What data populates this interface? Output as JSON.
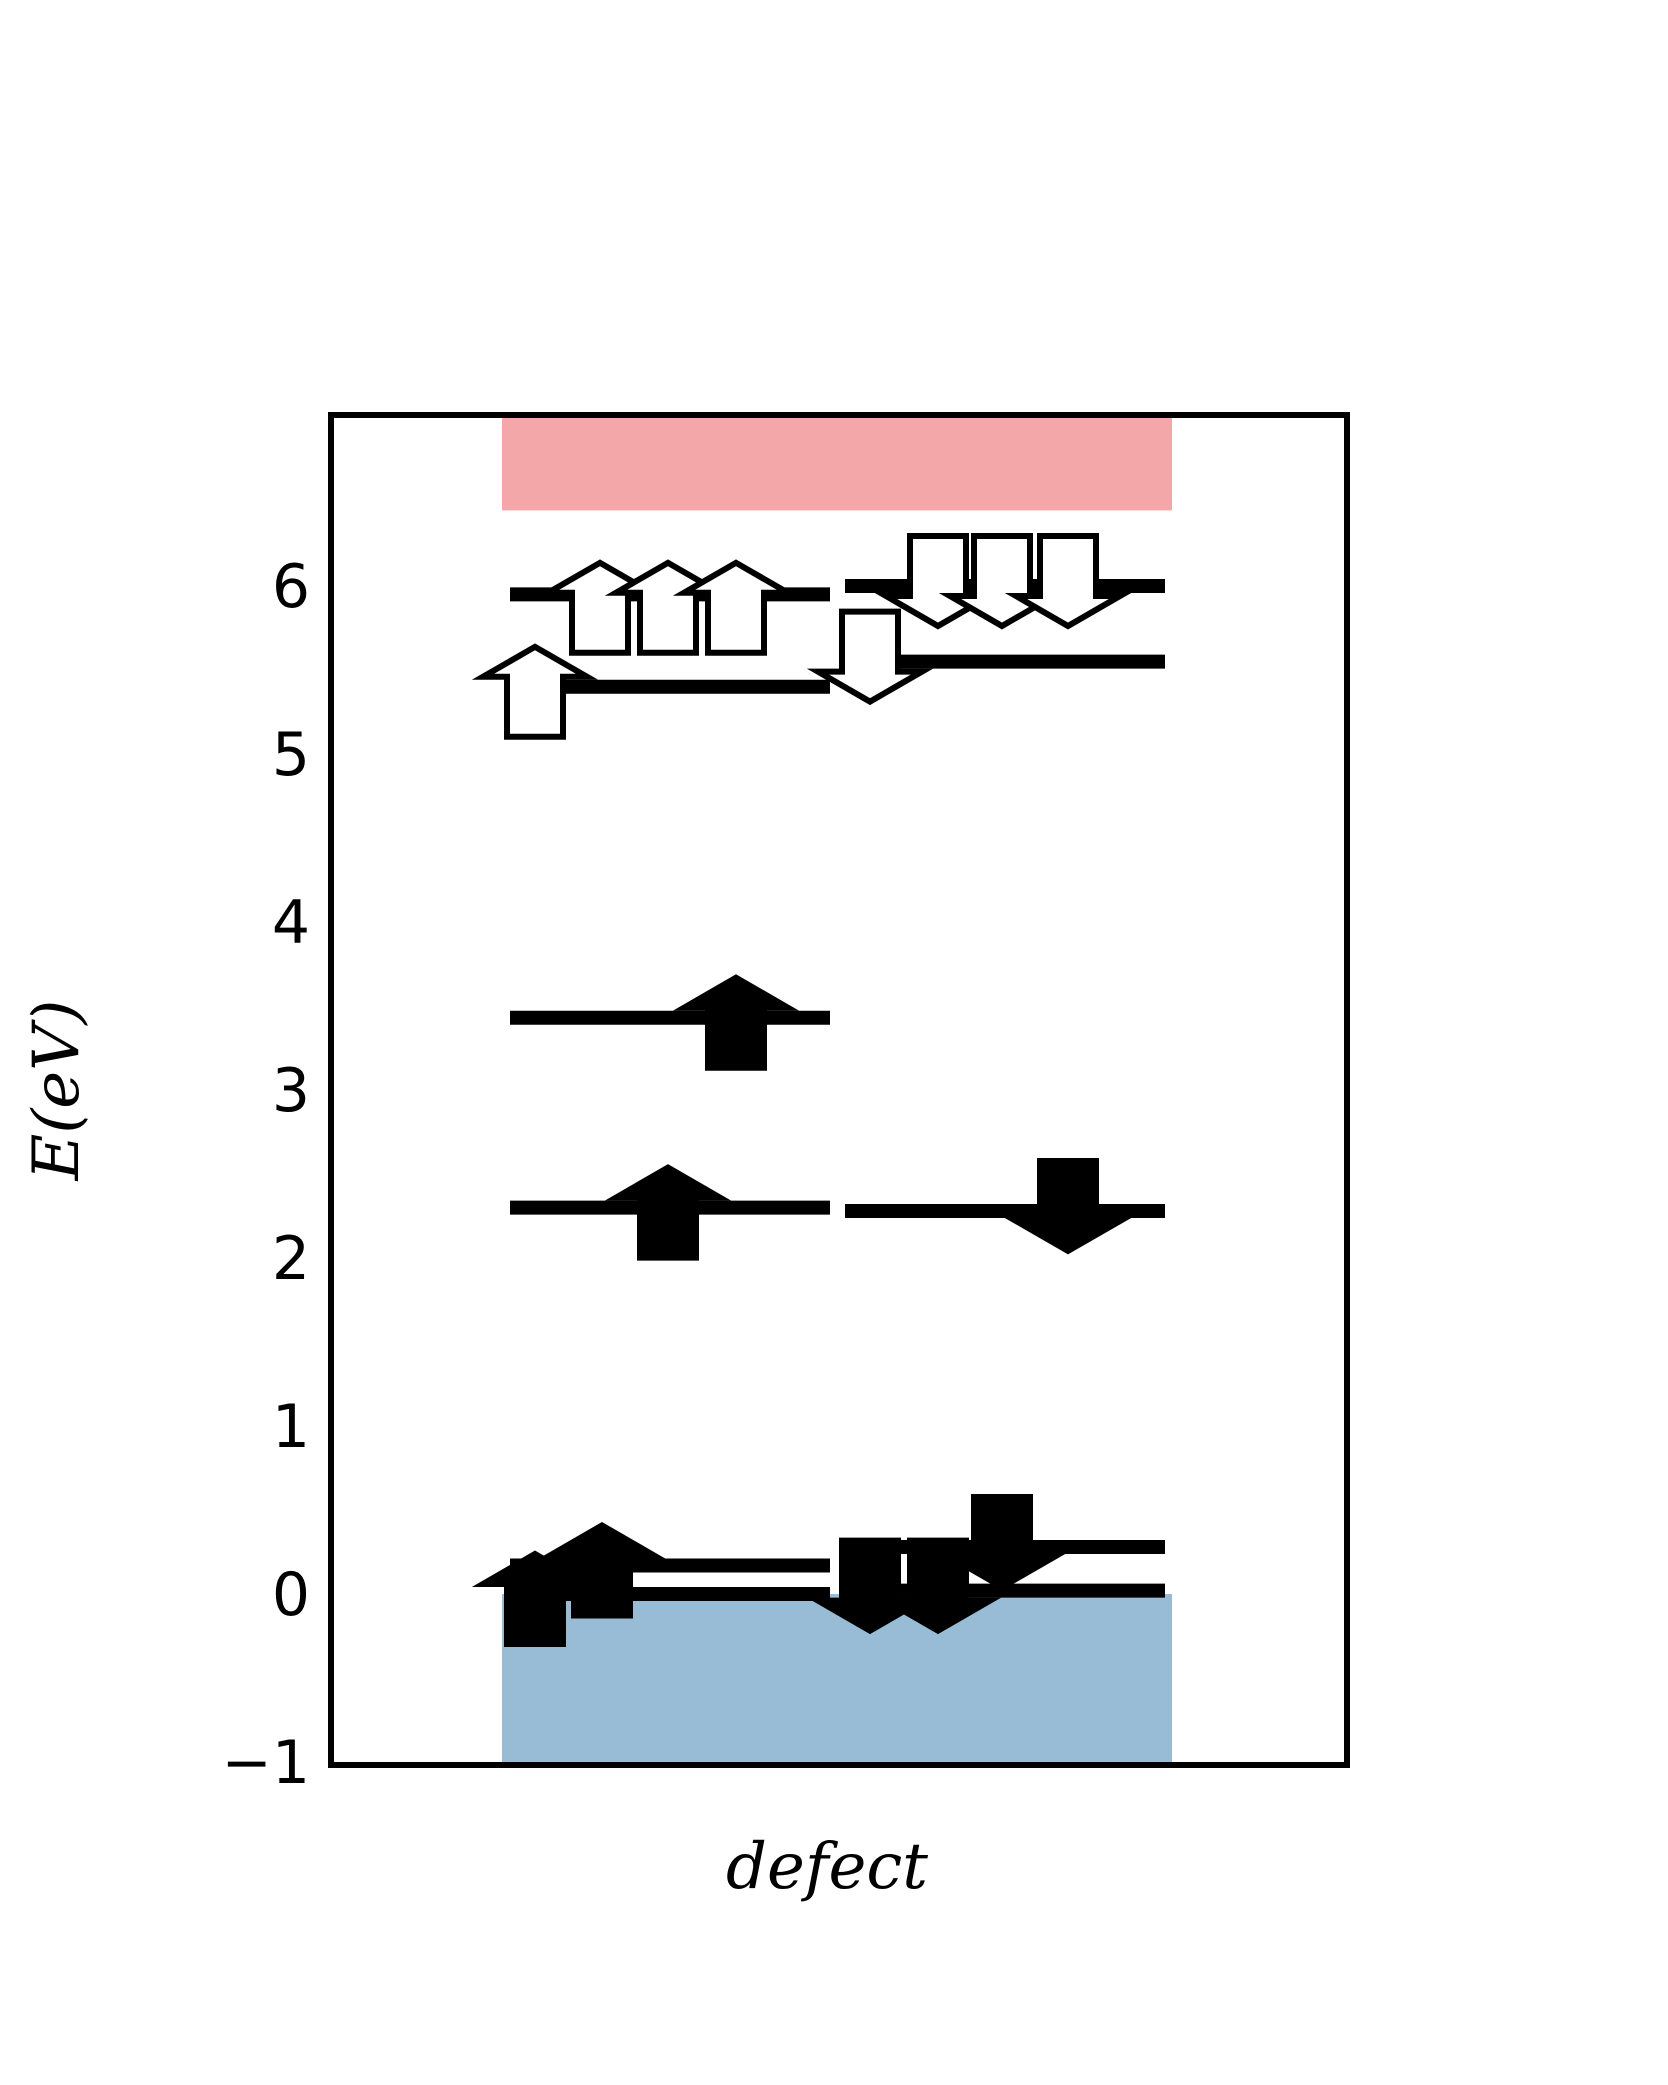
{
  "chart_data": {
    "type": "energy-level-diagram",
    "xlabel": "defect",
    "ylabel": "E(eV)",
    "ylim": [
      -1,
      7
    ],
    "yticks": [
      -1,
      0,
      1,
      2,
      3,
      4,
      5,
      6
    ],
    "ytick_labels": [
      "−1",
      "0",
      "1",
      "2",
      "3",
      "4",
      "5",
      "6"
    ],
    "bands": [
      {
        "name": "valence-band",
        "from": -1,
        "to": 0,
        "color": "#98bbd6"
      },
      {
        "name": "conduction-band",
        "from": 6.45,
        "to": 7,
        "color": "#f3a7a8"
      }
    ],
    "spin_up_levels": [
      {
        "energy": 5.95,
        "occupied": false
      },
      {
        "energy": 5.4,
        "occupied": false
      },
      {
        "energy": 3.43,
        "occupied": true
      },
      {
        "energy": 2.3,
        "occupied": true
      },
      {
        "energy": 0.17,
        "occupied": true
      },
      {
        "energy": 0.0,
        "occupied": true
      }
    ],
    "spin_down_levels": [
      {
        "energy": 6.0,
        "occupied": false
      },
      {
        "energy": 5.55,
        "occupied": false
      },
      {
        "energy": 2.28,
        "occupied": true
      },
      {
        "energy": 0.28,
        "occupied": true
      },
      {
        "energy": 0.02,
        "occupied": true
      }
    ],
    "spin_up_arrows": [
      {
        "energy": 5.4,
        "occupied": false
      },
      {
        "energy": 5.9,
        "occupied": false
      },
      {
        "energy": 5.9,
        "occupied": false
      },
      {
        "energy": 5.9,
        "occupied": false
      },
      {
        "energy": 3.43,
        "occupied": true
      },
      {
        "energy": 2.3,
        "occupied": true
      },
      {
        "energy": 0.0,
        "occupied": true
      },
      {
        "energy": 0.17,
        "occupied": true
      }
    ],
    "spin_down_arrows": [
      {
        "energy": 5.55,
        "occupied": false
      },
      {
        "energy": 6.0,
        "occupied": false
      },
      {
        "energy": 6.0,
        "occupied": false
      },
      {
        "energy": 6.0,
        "occupied": false
      },
      {
        "energy": 2.28,
        "occupied": true
      },
      {
        "energy": 0.02,
        "occupied": true
      },
      {
        "energy": 0.02,
        "occupied": true
      },
      {
        "energy": 0.28,
        "occupied": true
      }
    ],
    "colors": {
      "frame": "#000000",
      "level": "#000000",
      "occupied_arrow": "#000000",
      "empty_arrow": "#ffffff"
    }
  }
}
